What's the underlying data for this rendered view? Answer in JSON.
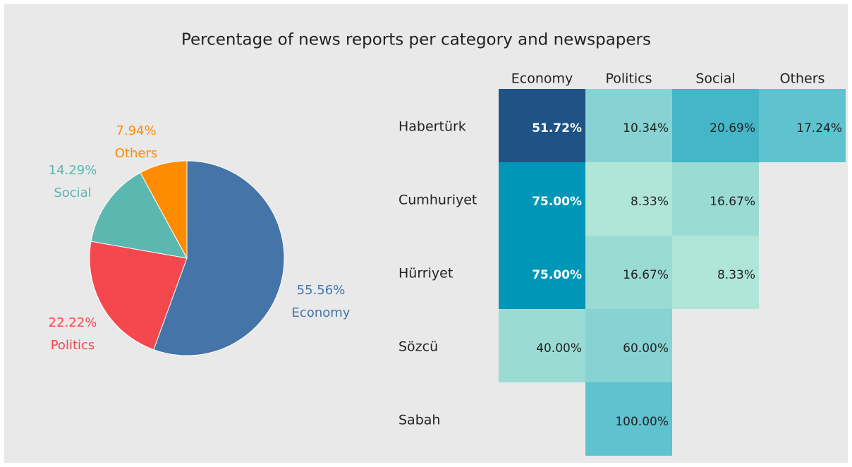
{
  "title": "Percentage of news reports per category and newspapers",
  "chart_data": [
    {
      "type": "pie",
      "categories": [
        "Economy",
        "Politics",
        "Social",
        "Others"
      ],
      "values": [
        55.56,
        22.22,
        14.29,
        7.94
      ],
      "value_labels": [
        "55.56%",
        "22.22%",
        "14.29%",
        "7.94%"
      ],
      "colors": [
        "#4575a8",
        "#f4484e",
        "#5bb8b0",
        "#ff8b00"
      ]
    },
    {
      "type": "heatmap",
      "columns": [
        "Economy",
        "Politics",
        "Social",
        "Others"
      ],
      "rows": [
        "Habertürk",
        "Cumhuriyet",
        "Hürriyet",
        "Sözcü",
        "Sabah"
      ],
      "values": [
        [
          51.72,
          10.34,
          20.69,
          17.24
        ],
        [
          75,
          8.33,
          16.67,
          null
        ],
        [
          75,
          16.67,
          8.33,
          null
        ],
        [
          40,
          60,
          null,
          null
        ],
        [
          null,
          100,
          null,
          null
        ]
      ],
      "value_labels": [
        [
          "51.72%",
          "10.34%",
          "20.69%",
          "17.24%"
        ],
        [
          "75.00%",
          "8.33%",
          "16.67%",
          null
        ],
        [
          "75.00%",
          "16.67%",
          "8.33%",
          null
        ],
        [
          "40.00%",
          "60.00%",
          null,
          null
        ],
        [
          null,
          "100.00%",
          null,
          null
        ]
      ],
      "colors": [
        [
          "#1f5385",
          "#87d3d3",
          "#45b6c7",
          "#5fc2cf"
        ],
        [
          "#0096b8",
          "#b0e6d8",
          "#9adcd4",
          null
        ],
        [
          "#0096b8",
          "#9adcd4",
          "#b0e6d8",
          null
        ],
        [
          "#9adcd4",
          "#87d3d3",
          null,
          null
        ],
        [
          null,
          "#5fc2cf",
          null,
          null
        ]
      ]
    }
  ]
}
